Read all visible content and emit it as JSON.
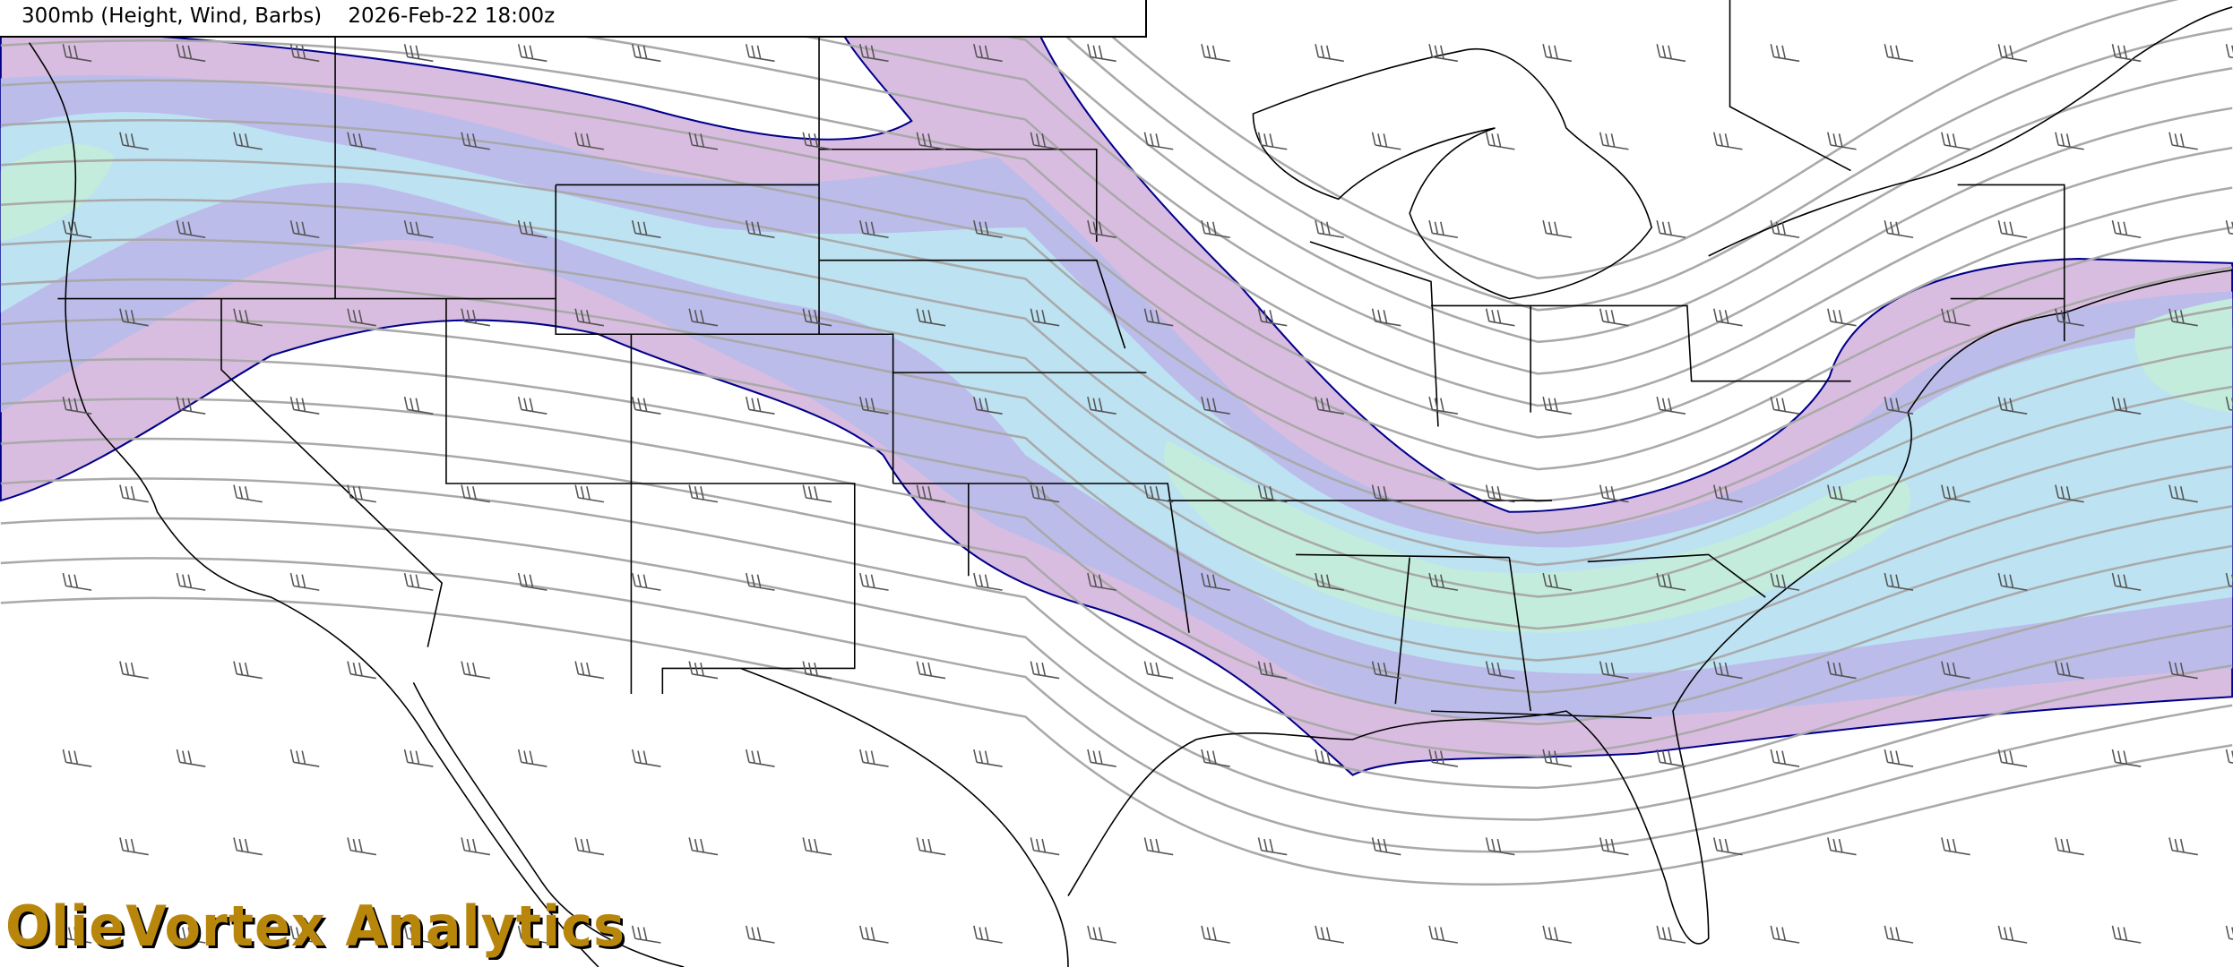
{
  "header": {
    "product": "300mb (Height, Wind, Barbs)",
    "valid_time": "2026-Feb-22 18:00z"
  },
  "watermark": {
    "text": "OlieVortex Analytics"
  },
  "colors": {
    "jet_outer": "#d9bde0",
    "jet_mid": "#bcbcea",
    "jet_inner": "#bde2f2",
    "jet_core": "#c4ecdc",
    "jet_edge": "#00008b",
    "contour": "#a9a9a9",
    "border": "#000000",
    "logo": "#b8860b"
  }
}
